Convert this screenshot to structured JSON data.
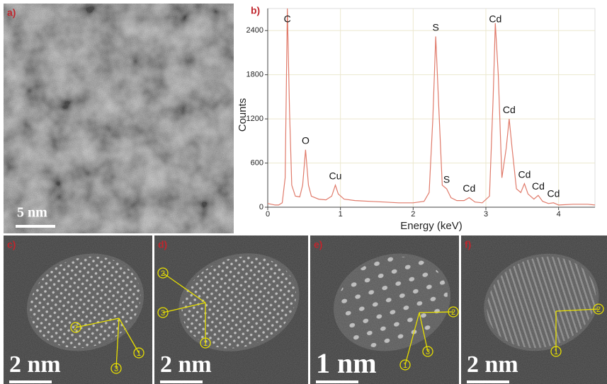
{
  "panels": {
    "a": {
      "label": "a)",
      "scale": "5 nm"
    },
    "c": {
      "label": "c)",
      "scale": "2 nm",
      "markers": [
        "2",
        "3",
        "1"
      ]
    },
    "d": {
      "label": "d)",
      "scale": "2 nm",
      "markers": [
        "2",
        "3",
        "1"
      ]
    },
    "e": {
      "label": "e)",
      "scale": "1 nm",
      "markers": [
        "2",
        "1",
        "3"
      ]
    },
    "f": {
      "label": "f)",
      "scale": "2 nm",
      "markers": [
        "2",
        "1"
      ]
    }
  },
  "chart_data": {
    "type": "line",
    "label": "b)",
    "x_label": "Energy (keV)",
    "y_label": "Counts",
    "xlim": [
      0,
      4.5
    ],
    "ylim": [
      0,
      2700
    ],
    "xticks": [
      0,
      1,
      2,
      3,
      4
    ],
    "yticks": [
      0,
      600,
      1200,
      1800,
      2400
    ],
    "grid": true,
    "color": "#e07a6a",
    "x": [
      0,
      0.05,
      0.1,
      0.15,
      0.2,
      0.24,
      0.27,
      0.3,
      0.33,
      0.38,
      0.44,
      0.48,
      0.52,
      0.56,
      0.6,
      0.7,
      0.8,
      0.88,
      0.93,
      0.97,
      1.05,
      1.2,
      1.4,
      1.6,
      1.8,
      2.0,
      2.15,
      2.22,
      2.27,
      2.31,
      2.35,
      2.4,
      2.46,
      2.52,
      2.6,
      2.7,
      2.77,
      2.85,
      2.95,
      3.05,
      3.1,
      3.13,
      3.17,
      3.22,
      3.28,
      3.32,
      3.36,
      3.42,
      3.48,
      3.53,
      3.58,
      3.66,
      3.72,
      3.78,
      3.86,
      3.93,
      4.0,
      4.2,
      4.4,
      4.5
    ],
    "values": [
      50,
      40,
      30,
      30,
      60,
      400,
      2700,
      1300,
      300,
      150,
      140,
      300,
      780,
      300,
      150,
      110,
      100,
      150,
      300,
      180,
      110,
      90,
      80,
      70,
      60,
      60,
      80,
      200,
      1200,
      2320,
      1400,
      300,
      250,
      130,
      90,
      90,
      130,
      70,
      60,
      150,
      1500,
      2500,
      1800,
      400,
      800,
      1200,
      800,
      250,
      200,
      320,
      180,
      110,
      160,
      80,
      50,
      60,
      30,
      40,
      40,
      30
    ],
    "peak_labels": [
      {
        "text": "C",
        "x": 0.27,
        "y": 2700
      },
      {
        "text": "O",
        "x": 0.52,
        "y": 780
      },
      {
        "text": "Cu",
        "x": 0.93,
        "y": 300
      },
      {
        "text": "S",
        "x": 2.31,
        "y": 2320
      },
      {
        "text": "S",
        "x": 2.46,
        "y": 250
      },
      {
        "text": "Cd",
        "x": 2.77,
        "y": 130
      },
      {
        "text": "Cd",
        "x": 3.13,
        "y": 2500
      },
      {
        "text": "Cd",
        "x": 3.32,
        "y": 1200
      },
      {
        "text": "Cd",
        "x": 3.53,
        "y": 320
      },
      {
        "text": "Cd",
        "x": 3.72,
        "y": 160
      },
      {
        "text": "Cd",
        "x": 3.93,
        "y": 60
      }
    ]
  }
}
